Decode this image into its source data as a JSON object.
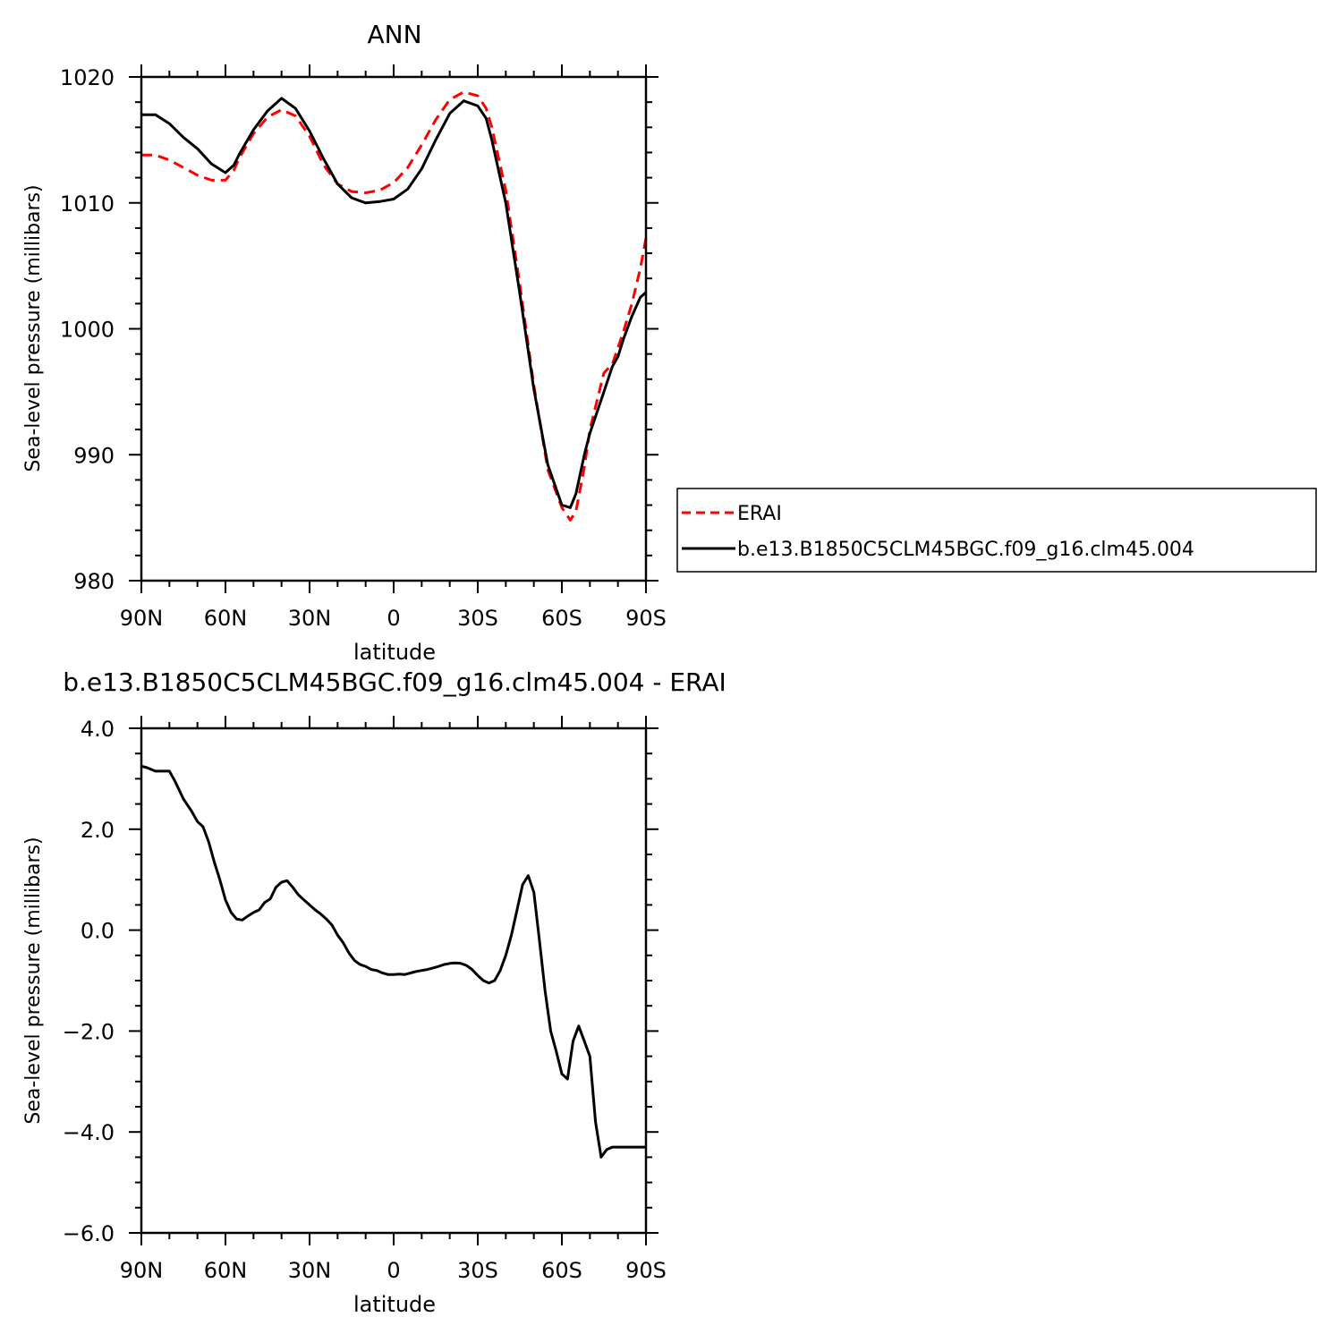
{
  "chart_data": [
    {
      "type": "line",
      "title": "ANN",
      "xlabel": "latitude",
      "ylabel": "Sea-level pressure (millibars)",
      "xlim": [
        90,
        -90
      ],
      "ylim": [
        980,
        1020
      ],
      "x_tick_labels": [
        "90N",
        "60N",
        "30N",
        "0",
        "30S",
        "60S",
        "90S"
      ],
      "y_tick_labels": [
        "980",
        "990",
        "1000",
        "1010",
        "1020"
      ],
      "legend_position": "right-middle",
      "series": [
        {
          "name": "ERAI",
          "color": "#ff0000",
          "dash": "dashed",
          "x": [
            90,
            85,
            80,
            75,
            70,
            65,
            60,
            57,
            55,
            50,
            45,
            40,
            35,
            30,
            25,
            20,
            15,
            10,
            5,
            0,
            -5,
            -10,
            -15,
            -20,
            -25,
            -30,
            -33,
            -35,
            -40,
            -45,
            -50,
            -55,
            -60,
            -63,
            -65,
            -68,
            -70,
            -75,
            -78,
            -80,
            -82,
            -85,
            -88,
            -90
          ],
          "y": [
            1013.8,
            1013.8,
            1013.4,
            1012.8,
            1012.2,
            1011.8,
            1011.8,
            1012.6,
            1013.6,
            1015.5,
            1016.8,
            1017.4,
            1016.9,
            1015.3,
            1013.0,
            1011.5,
            1010.9,
            1010.8,
            1011.0,
            1011.6,
            1012.8,
            1014.6,
            1016.6,
            1018.2,
            1018.8,
            1018.5,
            1017.5,
            1016.0,
            1011.0,
            1003.5,
            995.5,
            988.8,
            985.8,
            984.8,
            985.5,
            989.0,
            992.0,
            996.5,
            997.2,
            998.5,
            999.8,
            1002.0,
            1004.8,
            1007.2
          ]
        },
        {
          "name": "b.e13.B1850C5CLM45BGC.f09_g16.clm45.004",
          "color": "#000000",
          "dash": "solid",
          "x": [
            90,
            85,
            80,
            75,
            70,
            65,
            60,
            57,
            55,
            50,
            45,
            40,
            35,
            30,
            25,
            20,
            15,
            10,
            5,
            0,
            -5,
            -10,
            -15,
            -20,
            -25,
            -30,
            -33,
            -35,
            -40,
            -45,
            -50,
            -55,
            -60,
            -63,
            -65,
            -68,
            -70,
            -75,
            -78,
            -80,
            -82,
            -85,
            -88,
            -90
          ],
          "y": [
            1017.0,
            1017.0,
            1016.3,
            1015.2,
            1014.3,
            1013.1,
            1012.4,
            1013.0,
            1013.9,
            1015.8,
            1017.3,
            1018.3,
            1017.5,
            1015.7,
            1013.5,
            1011.5,
            1010.4,
            1010.0,
            1010.1,
            1010.3,
            1011.1,
            1012.7,
            1015.0,
            1017.1,
            1018.1,
            1017.7,
            1016.7,
            1015.0,
            1010.0,
            1002.8,
            995.2,
            989.2,
            986.0,
            985.8,
            986.9,
            990.0,
            991.7,
            995.0,
            997.0,
            997.8,
            999.2,
            1001.0,
            1002.5,
            1002.9
          ]
        }
      ]
    },
    {
      "type": "line",
      "title": "b.e13.B1850C5CLM45BGC.f09_g16.clm45.004 - ERAI",
      "xlabel": "latitude",
      "ylabel": "Sea-level pressure (millibars)",
      "xlim": [
        90,
        -90
      ],
      "ylim": [
        -6.0,
        4.0
      ],
      "x_tick_labels": [
        "90N",
        "60N",
        "30N",
        "0",
        "30S",
        "60S",
        "90S"
      ],
      "y_tick_labels": [
        "-6.0",
        "-4.0",
        "-2.0",
        "0.0",
        "2.0",
        "4.0"
      ],
      "series": [
        {
          "color": "#000000",
          "dash": "solid",
          "x": [
            90,
            88,
            85,
            83,
            80,
            78,
            75,
            72,
            70,
            68,
            66,
            64,
            62,
            60,
            58,
            56,
            54,
            52,
            50,
            48,
            46,
            44,
            42,
            40,
            38,
            36,
            34,
            32,
            30,
            28,
            26,
            24,
            22,
            20,
            18,
            16,
            14,
            12,
            10,
            8,
            6,
            4,
            2,
            0,
            -2,
            -4,
            -6,
            -8,
            -10,
            -12,
            -14,
            -16,
            -18,
            -20,
            -22,
            -24,
            -26,
            -28,
            -30,
            -32,
            -34,
            -36,
            -38,
            -40,
            -42,
            -44,
            -46,
            -48,
            -50,
            -52,
            -54,
            -56,
            -58,
            -60,
            -62,
            -64,
            -66,
            -68,
            -70,
            -72,
            -74,
            -76,
            -78,
            -80,
            -82,
            -84,
            -86,
            -87,
            -88,
            -89,
            -90
          ],
          "y": [
            3.25,
            3.22,
            3.15,
            3.15,
            3.15,
            2.95,
            2.6,
            2.35,
            2.15,
            2.05,
            1.75,
            1.35,
            1.0,
            0.6,
            0.35,
            0.22,
            0.2,
            0.28,
            0.35,
            0.4,
            0.55,
            0.62,
            0.85,
            0.95,
            0.98,
            0.85,
            0.7,
            0.6,
            0.5,
            0.4,
            0.32,
            0.22,
            0.1,
            -0.1,
            -0.25,
            -0.45,
            -0.6,
            -0.68,
            -0.72,
            -0.78,
            -0.8,
            -0.85,
            -0.88,
            -0.88,
            -0.87,
            -0.88,
            -0.85,
            -0.82,
            -0.8,
            -0.78,
            -0.75,
            -0.72,
            -0.68,
            -0.66,
            -0.65,
            -0.66,
            -0.7,
            -0.78,
            -0.9,
            -1.0,
            -1.05,
            -1.0,
            -0.8,
            -0.5,
            -0.1,
            0.4,
            0.9,
            1.08,
            0.75,
            -0.2,
            -1.2,
            -2.0,
            -2.4,
            -2.85,
            -2.95,
            -2.2,
            -1.9,
            -2.2,
            -2.5,
            -3.8,
            -4.5,
            -4.35,
            -4.3,
            -4.3,
            -4.3,
            -4.3,
            -4.3,
            -4.3,
            -4.3,
            -4.3,
            -4.3
          ]
        }
      ]
    }
  ]
}
